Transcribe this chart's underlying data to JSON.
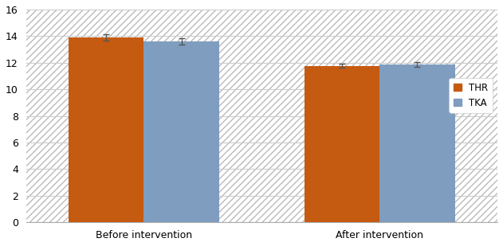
{
  "categories": [
    "Before intervention",
    "After intervention"
  ],
  "thr_values": [
    13.9,
    11.75
  ],
  "tka_values": [
    13.6,
    11.85
  ],
  "thr_errors": [
    0.22,
    0.15
  ],
  "tka_errors": [
    0.25,
    0.18
  ],
  "thr_color": "#C55A11",
  "tka_color": "#7F9DBF",
  "bar_width": 0.32,
  "ylim": [
    0,
    16
  ],
  "yticks": [
    0,
    2,
    4,
    6,
    8,
    10,
    12,
    14,
    16
  ],
  "legend_labels": [
    "THR",
    "TKA"
  ],
  "background_color": "#FFFFFF",
  "plot_bg_color": "#FFFFFF",
  "hatch_color": "#DCDCDC",
  "grid_color": "#CCCCCC",
  "figsize": [
    6.31,
    3.09
  ],
  "dpi": 100
}
